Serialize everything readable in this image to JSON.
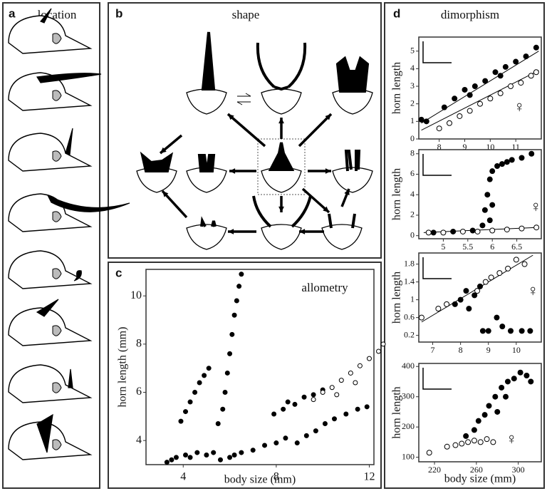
{
  "panels": [
    {
      "letter": "a",
      "title": "location"
    },
    {
      "letter": "b",
      "title": "shape"
    },
    {
      "letter": "c"
    },
    {
      "letter": "d",
      "title": "dimorphism"
    }
  ],
  "chart_data": [
    {
      "type": "scatter",
      "title": "allometry",
      "xlabel": "body size (mm)",
      "ylabel": "horn length (mm)",
      "xlim": [
        2.4,
        12.2
      ],
      "ylim": [
        3.0,
        11.1
      ],
      "xticks": [
        4,
        8,
        12
      ],
      "yticks": [
        4,
        6,
        8,
        10
      ],
      "series": [
        {
          "color": "#000000",
          "marker": "filled",
          "x": [
            3.3,
            3.7,
            4.1,
            4.6,
            5.0,
            3.5,
            4.3,
            5.3,
            5.5,
            5.7,
            5.8,
            5.9,
            6.0,
            6.1,
            6.2,
            6.3,
            6.4,
            6.5,
            3.9,
            4.1,
            4.3,
            4.5,
            4.7,
            4.9,
            5.1,
            5.6,
            6.0,
            6.5,
            7.0,
            7.5,
            8.0,
            8.4,
            6.2,
            7.9,
            8.3,
            8.8,
            9.2,
            9.6,
            10.0,
            8.5,
            8.9,
            9.3,
            9.7,
            10.1,
            10.5,
            11.0,
            11.5,
            11.9
          ],
          "values": [
            3.1,
            3.3,
            3.4,
            3.5,
            3.4,
            3.2,
            3.3,
            3.5,
            4.7,
            5.3,
            6.0,
            6.8,
            7.6,
            8.4,
            9.2,
            9.8,
            10.4,
            10.9,
            4.8,
            5.2,
            5.6,
            6.0,
            6.4,
            6.7,
            7.0,
            3.2,
            3.3,
            3.5,
            3.6,
            3.8,
            3.9,
            4.1,
            3.4,
            5.1,
            5.3,
            5.5,
            5.8,
            5.9,
            6.1,
            5.6,
            3.9,
            4.2,
            4.4,
            4.7,
            4.9,
            5.1,
            5.3,
            5.4
          ]
        },
        {
          "color": "#000000",
          "marker": "open",
          "x": [
            9.6,
            10.0,
            10.4,
            10.8,
            11.2,
            11.6,
            12.0,
            12.4,
            12.6,
            10.6,
            11.4
          ],
          "values": [
            5.7,
            6.0,
            6.2,
            6.5,
            6.8,
            7.1,
            7.4,
            7.7,
            8.0,
            5.9,
            6.4
          ]
        }
      ]
    },
    {
      "type": "scatter",
      "ylabel": "horn length",
      "annotation": "♀",
      "xlim": [
        7.2,
        12.0
      ],
      "ylim": [
        0,
        5.8
      ],
      "xticks": [
        8,
        9,
        10,
        11
      ],
      "yticks": [
        0,
        1,
        2,
        3,
        4,
        5
      ],
      "series": [
        {
          "color": "#000000",
          "marker": "filled",
          "x": [
            7.3,
            7.5,
            8.2,
            8.6,
            9.0,
            9.4,
            9.8,
            10.2,
            10.6,
            11.0,
            11.4,
            11.8,
            9.2,
            10.4
          ],
          "values": [
            1.1,
            1.0,
            1.8,
            2.3,
            2.8,
            3.0,
            3.3,
            3.8,
            4.1,
            4.4,
            4.7,
            5.2,
            2.5,
            3.6
          ]
        },
        {
          "color": "#000000",
          "marker": "open",
          "x": [
            8.0,
            8.4,
            8.8,
            9.2,
            9.6,
            10.0,
            10.4,
            10.8,
            11.2,
            11.6,
            11.8
          ],
          "values": [
            0.6,
            0.9,
            1.3,
            1.6,
            2.0,
            2.3,
            2.6,
            3.0,
            3.2,
            3.6,
            3.8
          ]
        }
      ],
      "lines": [
        {
          "x": [
            7.3,
            11.9
          ],
          "values": [
            0.9,
            5.0
          ]
        },
        {
          "x": [
            7.3,
            11.9
          ],
          "values": [
            0.5,
            3.9
          ]
        }
      ]
    },
    {
      "type": "scatter",
      "ylabel": "horn length",
      "annotation": "♀",
      "xlim": [
        4.5,
        7.0
      ],
      "ylim": [
        -0.3,
        8.4
      ],
      "xticks": [
        5,
        5.5,
        6,
        6.5
      ],
      "yticks": [
        0,
        2,
        4,
        6,
        8
      ],
      "series": [
        {
          "color": "#000000",
          "marker": "filled",
          "x": [
            4.8,
            5.2,
            5.6,
            5.8,
            5.85,
            5.9,
            5.95,
            6.0,
            6.1,
            6.2,
            6.3,
            6.4,
            6.6,
            6.8,
            5.95,
            6.0
          ],
          "values": [
            0.3,
            0.4,
            0.5,
            1.0,
            2.5,
            4.0,
            5.5,
            6.3,
            6.8,
            7.0,
            7.2,
            7.4,
            7.6,
            8.0,
            1.5,
            3.0
          ]
        },
        {
          "color": "#000000",
          "marker": "open",
          "x": [
            4.7,
            5.0,
            5.4,
            5.7,
            6.0,
            6.3,
            6.6,
            6.9
          ],
          "values": [
            0.3,
            0.3,
            0.4,
            0.4,
            0.5,
            0.6,
            0.7,
            0.8
          ]
        }
      ],
      "lines": [
        {
          "x": [
            4.6,
            6.9
          ],
          "values": [
            0.3,
            0.8
          ]
        }
      ]
    },
    {
      "type": "scatter",
      "ylabel": "horn length",
      "annotation": "♀",
      "xlim": [
        6.5,
        10.9
      ],
      "ylim": [
        0.05,
        2.05
      ],
      "xticks": [
        7,
        8,
        9,
        10
      ],
      "yticks": [
        0.2,
        0.6,
        1,
        1.4,
        1.8
      ],
      "series": [
        {
          "color": "#000000",
          "marker": "filled",
          "x": [
            7.8,
            8.0,
            8.2,
            8.5,
            8.7,
            8.3,
            8.8,
            9.0,
            9.5,
            9.8,
            10.2,
            10.5,
            9.3
          ],
          "values": [
            0.9,
            1.0,
            1.2,
            1.1,
            1.3,
            0.8,
            0.3,
            0.3,
            0.4,
            0.3,
            0.3,
            0.3,
            0.6
          ]
        },
        {
          "color": "#000000",
          "marker": "open",
          "x": [
            6.6,
            7.2,
            7.5,
            8.6,
            8.9,
            9.1,
            9.4,
            9.7,
            10.0,
            10.3
          ],
          "values": [
            0.6,
            0.8,
            0.9,
            1.2,
            1.4,
            1.5,
            1.6,
            1.7,
            1.9,
            1.8
          ]
        }
      ],
      "lines": [
        {
          "x": [
            6.6,
            10.6
          ],
          "values": [
            0.5,
            2.0
          ]
        }
      ]
    },
    {
      "type": "scatter",
      "ylabel": "horn length",
      "xlabel": "body size (mm)",
      "annotation": "♀",
      "xlim": [
        205,
        322
      ],
      "ylim": [
        85,
        410
      ],
      "xticks": [
        220,
        260,
        300
      ],
      "yticks": [
        100,
        200,
        300,
        400
      ],
      "series": [
        {
          "color": "#000000",
          "marker": "filled",
          "x": [
            250,
            258,
            262,
            268,
            272,
            278,
            284,
            290,
            296,
            302,
            308,
            312,
            280,
            288
          ],
          "values": [
            170,
            190,
            220,
            240,
            270,
            300,
            330,
            350,
            360,
            380,
            370,
            350,
            250,
            300
          ]
        },
        {
          "color": "#000000",
          "marker": "open",
          "x": [
            215,
            232,
            240,
            246,
            252,
            258,
            264,
            270,
            276
          ],
          "values": [
            115,
            135,
            140,
            145,
            150,
            155,
            150,
            160,
            150
          ]
        }
      ]
    }
  ]
}
